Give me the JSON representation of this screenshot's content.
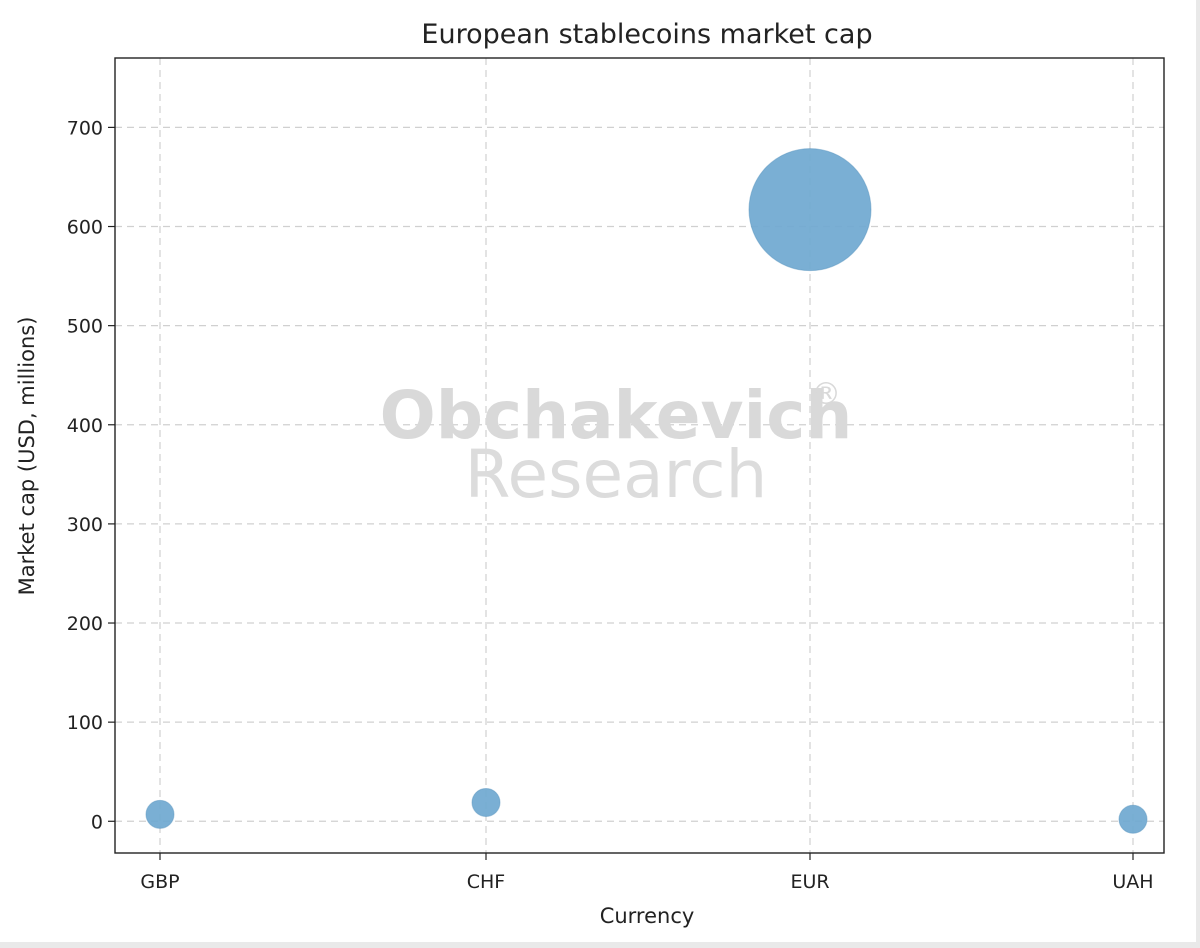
{
  "chart_data": {
    "type": "scatter",
    "title": "European stablecoins market cap",
    "xlabel": "Currency",
    "ylabel": "Market cap (USD, millions)",
    "categories": [
      "GBP",
      "CHF",
      "EUR",
      "UAH"
    ],
    "values": [
      7,
      19,
      617,
      2
    ],
    "ylim": [
      -32,
      770
    ],
    "yticks": [
      0,
      100,
      200,
      300,
      400,
      500,
      600,
      700
    ],
    "grid": true,
    "marker_color": "#6fa8d0",
    "size_encodes": "market cap"
  },
  "watermark": {
    "brand": "Obchakevich",
    "mark": "®",
    "sub": "Research"
  }
}
